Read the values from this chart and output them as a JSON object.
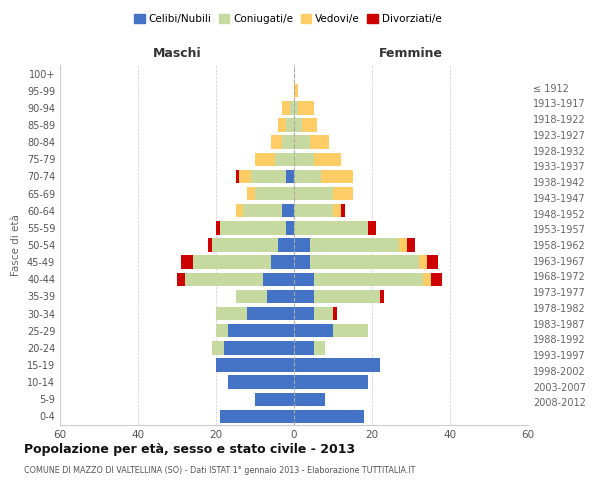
{
  "age_groups": [
    "0-4",
    "5-9",
    "10-14",
    "15-19",
    "20-24",
    "25-29",
    "30-34",
    "35-39",
    "40-44",
    "45-49",
    "50-54",
    "55-59",
    "60-64",
    "65-69",
    "70-74",
    "75-79",
    "80-84",
    "85-89",
    "90-94",
    "95-99",
    "100+"
  ],
  "birth_years": [
    "2008-2012",
    "2003-2007",
    "1998-2002",
    "1993-1997",
    "1988-1992",
    "1983-1987",
    "1978-1982",
    "1973-1977",
    "1968-1972",
    "1963-1967",
    "1958-1962",
    "1953-1957",
    "1948-1952",
    "1943-1947",
    "1938-1942",
    "1933-1937",
    "1928-1932",
    "1923-1927",
    "1918-1922",
    "1913-1917",
    "≤ 1912"
  ],
  "maschi": {
    "celibi": [
      19,
      10,
      17,
      20,
      18,
      17,
      12,
      7,
      8,
      6,
      4,
      2,
      3,
      0,
      2,
      0,
      0,
      0,
      0,
      0,
      0
    ],
    "coniugati": [
      0,
      0,
      0,
      0,
      3,
      3,
      8,
      8,
      20,
      20,
      17,
      17,
      10,
      10,
      9,
      5,
      3,
      2,
      1,
      0,
      0
    ],
    "vedovi": [
      0,
      0,
      0,
      0,
      0,
      0,
      0,
      0,
      0,
      0,
      0,
      0,
      2,
      2,
      3,
      5,
      3,
      2,
      2,
      0,
      0
    ],
    "divorziati": [
      0,
      0,
      0,
      0,
      0,
      0,
      0,
      0,
      2,
      3,
      1,
      1,
      0,
      0,
      1,
      0,
      0,
      0,
      0,
      0,
      0
    ]
  },
  "femmine": {
    "nubili": [
      18,
      8,
      19,
      22,
      5,
      10,
      5,
      5,
      5,
      4,
      4,
      0,
      0,
      0,
      0,
      0,
      0,
      0,
      0,
      0,
      0
    ],
    "coniugate": [
      0,
      0,
      0,
      0,
      3,
      9,
      5,
      17,
      28,
      28,
      23,
      19,
      10,
      10,
      7,
      5,
      4,
      2,
      1,
      0,
      0
    ],
    "vedove": [
      0,
      0,
      0,
      0,
      0,
      0,
      0,
      0,
      2,
      2,
      2,
      0,
      2,
      5,
      8,
      7,
      5,
      4,
      4,
      1,
      0
    ],
    "divorziate": [
      0,
      0,
      0,
      0,
      0,
      0,
      1,
      1,
      3,
      3,
      2,
      2,
      1,
      0,
      0,
      0,
      0,
      0,
      0,
      0,
      0
    ]
  },
  "colors": {
    "celibi": "#4472c4",
    "coniugati": "#c5d9a0",
    "vedovi": "#ffcc66",
    "divorziati": "#cc0000"
  },
  "xlim": 60,
  "title": "Popolazione per età, sesso e stato civile - 2013",
  "subtitle": "COMUNE DI MAZZO DI VALTELLINA (SO) - Dati ISTAT 1° gennaio 2013 - Elaborazione TUTTITALIA.IT",
  "ylabel_left": "Fasce di età",
  "label_maschi": "Maschi",
  "label_femmine": "Femmine",
  "legend_labels": [
    "Celibi/Nubili",
    "Coniugati/e",
    "Vedovi/e",
    "Divorziati/e"
  ]
}
